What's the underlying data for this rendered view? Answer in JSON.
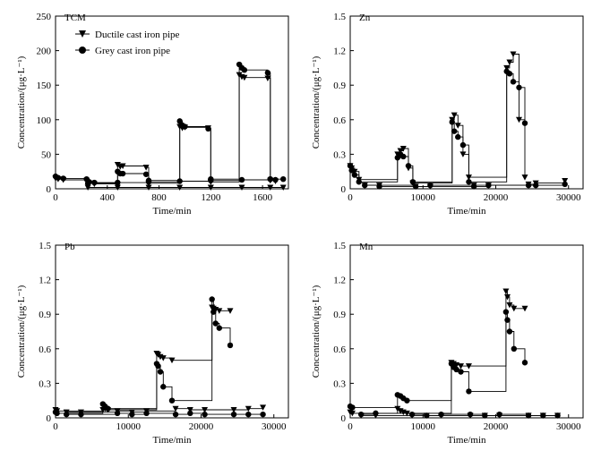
{
  "figure": {
    "background": "#ffffff",
    "ink": "#000000"
  },
  "legend": {
    "ductile_label": "Ductile cast iron pipe",
    "grey_label": "Grey cast iron pipe"
  },
  "chart_data": [
    {
      "type": "scatter",
      "title": "TCM",
      "xlabel": "Time/min",
      "ylabel": "Concentration/(μg·L⁻¹)",
      "xlim": [
        0,
        1800
      ],
      "ylim": [
        0,
        250
      ],
      "xticks": [
        0,
        400,
        800,
        1200,
        1600
      ],
      "yticks": [
        0,
        50,
        100,
        150,
        200,
        250
      ],
      "xticklabels": [
        "0",
        "400",
        "800",
        "1200",
        "1600"
      ],
      "yticklabels": [
        "0",
        "50",
        "100",
        "150",
        "200",
        "250"
      ],
      "series": [
        {
          "name": "Ductile cast iron pipe",
          "marker": "triangle-down",
          "x": [
            0,
            20,
            60,
            240,
            260,
            300,
            480,
            500,
            520,
            700,
            720,
            960,
            980,
            1000,
            1180,
            1200,
            1420,
            1440,
            1460,
            1640,
            1660,
            1700
          ],
          "y": [
            15,
            14,
            13,
            12,
            8,
            7,
            35,
            32,
            33,
            31,
            8,
            90,
            88,
            89,
            88,
            10,
            165,
            162,
            161,
            160,
            12,
            11
          ]
        },
        {
          "name": "Grey cast iron pipe",
          "marker": "circle",
          "x": [
            0,
            20,
            60,
            240,
            260,
            300,
            480,
            500,
            520,
            700,
            720,
            960,
            980,
            1000,
            1180,
            1200,
            1420,
            1440,
            1460,
            1640,
            1660,
            1700
          ],
          "y": [
            18,
            16,
            15,
            14,
            10,
            9,
            25,
            22,
            22,
            21,
            12,
            98,
            92,
            90,
            87,
            14,
            180,
            175,
            172,
            168,
            14,
            13
          ]
        },
        {
          "name": "Ductile cast iron pipe",
          "marker": "triangle-down",
          "role": "baseline",
          "x": [
            250,
            480,
            720,
            960,
            1200,
            1440,
            1660,
            1760
          ],
          "y": [
            2,
            2,
            2,
            2,
            2,
            2,
            2,
            2
          ]
        },
        {
          "name": "Grey cast iron pipe",
          "marker": "circle",
          "role": "baseline",
          "x": [
            250,
            480,
            720,
            960,
            1200,
            1440,
            1660,
            1760
          ],
          "y": [
            8,
            9,
            10,
            11,
            12,
            13,
            14,
            14
          ]
        }
      ]
    },
    {
      "type": "scatter",
      "title": "Zn",
      "xlabel": "Time/min",
      "ylabel": "Concentration/(μg·L⁻¹)",
      "xlim": [
        0,
        32000
      ],
      "ylim": [
        0,
        1.5
      ],
      "xticks": [
        0,
        10000,
        20000,
        30000
      ],
      "yticks": [
        0,
        0.3,
        0.6,
        0.9,
        1.2,
        1.5
      ],
      "xticklabels": [
        "0",
        "10000",
        "20000",
        "30000"
      ],
      "yticklabels": [
        "0",
        "0.3",
        "0.6",
        "0.9",
        "1.2",
        "1.5"
      ],
      "series": [
        {
          "name": "Ductile cast iron pipe",
          "marker": "triangle-down",
          "x": [
            0,
            200,
            600,
            1200,
            6500,
            6900,
            7300,
            8000,
            8600,
            14000,
            14300,
            14800,
            15500,
            16300,
            21500,
            21900,
            22400,
            23200,
            24000
          ],
          "y": [
            0.2,
            0.18,
            0.15,
            0.08,
            0.3,
            0.33,
            0.35,
            0.18,
            0.05,
            0.6,
            0.64,
            0.55,
            0.3,
            0.1,
            1.05,
            1.1,
            1.17,
            0.6,
            0.1
          ]
        },
        {
          "name": "Grey cast iron pipe",
          "marker": "circle",
          "x": [
            0,
            200,
            600,
            1200,
            6500,
            6900,
            7300,
            8000,
            8600,
            14000,
            14300,
            14800,
            15500,
            16300,
            21500,
            21900,
            22400,
            23200,
            24000
          ],
          "y": [
            0.2,
            0.16,
            0.12,
            0.06,
            0.27,
            0.3,
            0.28,
            0.2,
            0.06,
            0.58,
            0.5,
            0.45,
            0.38,
            0.06,
            1.02,
            1.0,
            0.93,
            0.88,
            0.57
          ]
        },
        {
          "name": "Ductile cast iron pipe",
          "marker": "triangle-down",
          "role": "baseline",
          "x": [
            2000,
            4000,
            9000,
            11000,
            17000,
            19000,
            24500,
            25500,
            29500
          ],
          "y": [
            0.03,
            0.03,
            0.02,
            0.02,
            0.03,
            0.03,
            0.04,
            0.05,
            0.07
          ]
        },
        {
          "name": "Grey cast iron pipe",
          "marker": "circle",
          "role": "baseline",
          "x": [
            2000,
            4000,
            9000,
            11000,
            17000,
            19000,
            24500,
            25500,
            29500
          ],
          "y": [
            0.03,
            0.02,
            0.02,
            0.03,
            0.02,
            0.03,
            0.03,
            0.03,
            0.04
          ]
        }
      ]
    },
    {
      "type": "scatter",
      "title": "Pb",
      "xlabel": "Time/min",
      "ylabel": "Concentration/(μg·L⁻¹)",
      "xlim": [
        0,
        32000
      ],
      "ylim": [
        0,
        1.5
      ],
      "xticks": [
        0,
        10000,
        20000,
        30000
      ],
      "yticks": [
        0,
        0.3,
        0.6,
        0.9,
        1.2,
        1.5
      ],
      "xticklabels": [
        "0",
        "10000",
        "20000",
        "30000"
      ],
      "yticklabels": [
        "0",
        "0.3",
        "0.6",
        "0.9",
        "1.2",
        "1.5"
      ],
      "series": [
        {
          "name": "Ductile cast iron pipe",
          "marker": "triangle-down",
          "x": [
            0,
            200,
            6500,
            6800,
            7200,
            13900,
            14100,
            14400,
            14800,
            16000,
            21500,
            21700,
            22000,
            22500,
            24000
          ],
          "y": [
            0.07,
            0.06,
            0.07,
            0.08,
            0.07,
            0.56,
            0.55,
            0.53,
            0.52,
            0.5,
            0.96,
            0.95,
            0.94,
            0.93,
            0.93
          ]
        },
        {
          "name": "Grey cast iron pipe",
          "marker": "circle",
          "x": [
            0,
            200,
            6500,
            6800,
            7200,
            13900,
            14100,
            14400,
            14800,
            16000,
            21500,
            21700,
            22000,
            22500,
            24000
          ],
          "y": [
            0.05,
            0.04,
            0.12,
            0.1,
            0.08,
            0.47,
            0.45,
            0.4,
            0.27,
            0.15,
            1.03,
            0.92,
            0.82,
            0.78,
            0.63
          ]
        },
        {
          "name": "Ductile cast iron pipe",
          "marker": "triangle-down",
          "role": "baseline",
          "x": [
            1500,
            3500,
            8500,
            10500,
            12500,
            16500,
            18500,
            20500,
            24500,
            26500,
            28500
          ],
          "y": [
            0.05,
            0.05,
            0.06,
            0.05,
            0.06,
            0.08,
            0.07,
            0.07,
            0.07,
            0.08,
            0.09
          ]
        },
        {
          "name": "Grey cast iron pipe",
          "marker": "circle",
          "role": "baseline",
          "x": [
            1500,
            3500,
            8500,
            10500,
            12500,
            16500,
            18500,
            20500,
            24500,
            26500,
            28500
          ],
          "y": [
            0.03,
            0.03,
            0.04,
            0.03,
            0.04,
            0.03,
            0.04,
            0.03,
            0.03,
            0.03,
            0.03
          ]
        }
      ]
    },
    {
      "type": "scatter",
      "title": "Mn",
      "xlabel": "Time/min",
      "ylabel": "Concentration/(μg·L⁻¹)",
      "xlim": [
        0,
        32000
      ],
      "ylim": [
        0,
        1.5
      ],
      "xticks": [
        0,
        10000,
        20000,
        30000
      ],
      "yticks": [
        0,
        0.3,
        0.6,
        0.9,
        1.2,
        1.5
      ],
      "xticklabels": [
        "0",
        "10000",
        "20000",
        "30000"
      ],
      "yticklabels": [
        "0",
        "0.3",
        "0.6",
        "0.9",
        "1.2",
        "1.5"
      ],
      "series": [
        {
          "name": "Ductile cast iron pipe",
          "marker": "triangle-down",
          "x": [
            0,
            300,
            6500,
            6900,
            7300,
            7800,
            13900,
            14200,
            14600,
            15200,
            16300,
            21400,
            21600,
            21900,
            22500,
            24000
          ],
          "y": [
            0.05,
            0.04,
            0.08,
            0.06,
            0.05,
            0.04,
            0.48,
            0.47,
            0.46,
            0.45,
            0.45,
            1.1,
            1.05,
            0.98,
            0.95,
            0.95
          ]
        },
        {
          "name": "Grey cast iron pipe",
          "marker": "circle",
          "x": [
            0,
            300,
            6500,
            6900,
            7300,
            7800,
            13900,
            14200,
            14600,
            15200,
            16300,
            21400,
            21600,
            21900,
            22500,
            24000
          ],
          "y": [
            0.1,
            0.09,
            0.2,
            0.19,
            0.17,
            0.15,
            0.47,
            0.44,
            0.42,
            0.4,
            0.23,
            0.92,
            0.85,
            0.75,
            0.6,
            0.48
          ]
        },
        {
          "name": "Ductile cast iron pipe",
          "marker": "triangle-down",
          "role": "baseline",
          "x": [
            1500,
            3500,
            8500,
            10500,
            12500,
            16500,
            18500,
            20500,
            24500,
            26500,
            28500
          ],
          "y": [
            0.02,
            0.02,
            0.02,
            0.02,
            0.02,
            0.02,
            0.02,
            0.02,
            0.02,
            0.02,
            0.02
          ]
        },
        {
          "name": "Grey cast iron pipe",
          "marker": "circle",
          "role": "baseline",
          "x": [
            1500,
            3500,
            8500,
            10500,
            12500,
            16500,
            18500,
            20500,
            24500,
            26500,
            28500
          ],
          "y": [
            0.03,
            0.04,
            0.03,
            0.02,
            0.03,
            0.03,
            0.02,
            0.03,
            0.02,
            0.02,
            0.02
          ]
        }
      ]
    }
  ]
}
